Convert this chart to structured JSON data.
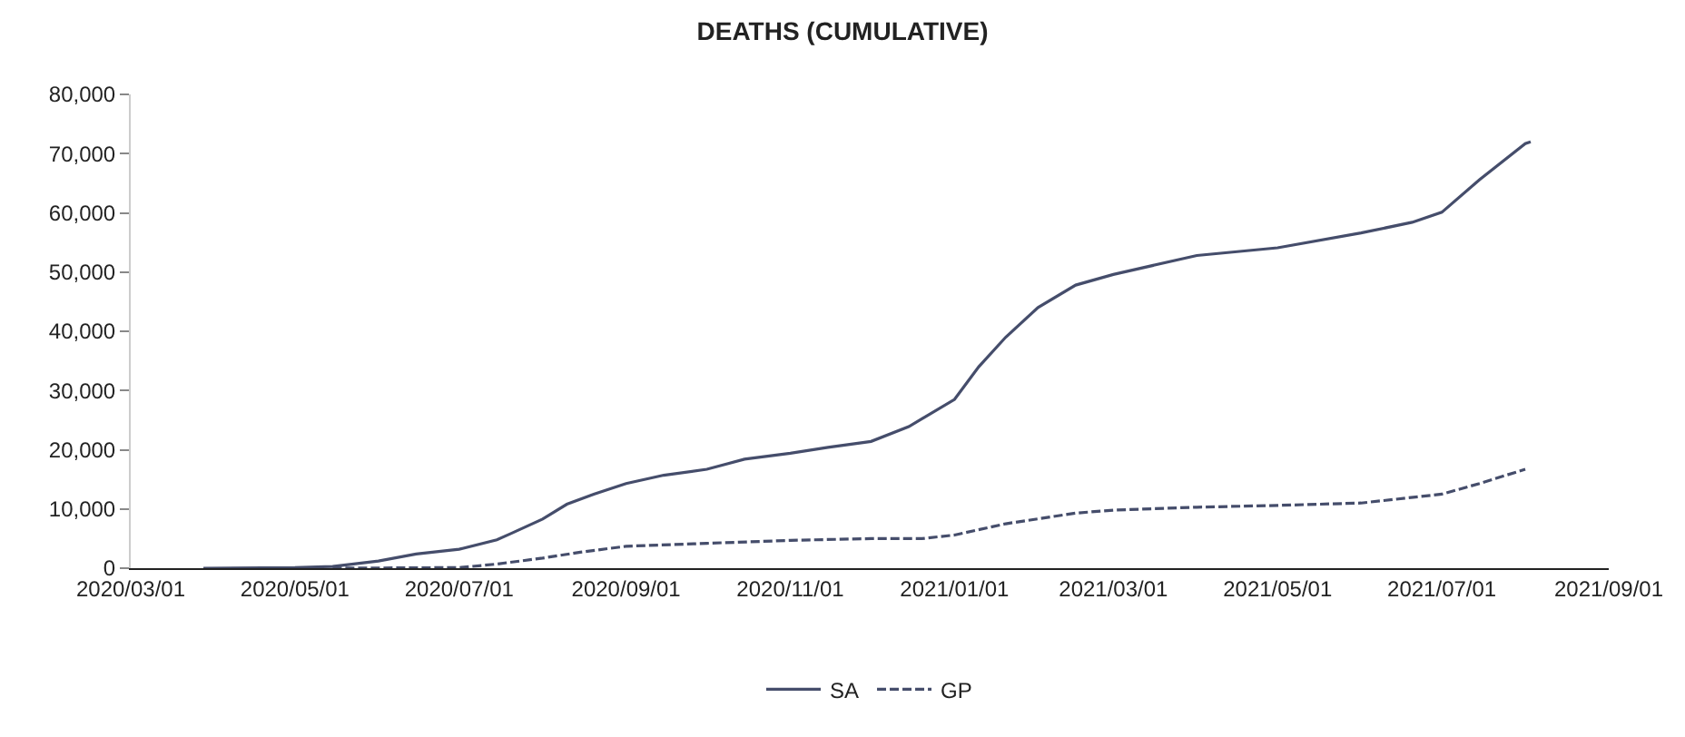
{
  "chart_data": {
    "type": "line",
    "title": "DEATHS (CUMULATIVE)",
    "x": [
      "2020-03-28",
      "2020-05-01",
      "2020-05-15",
      "2020-06-01",
      "2020-06-15",
      "2020-07-01",
      "2020-07-15",
      "2020-07-20",
      "2020-08-01",
      "2020-08-10",
      "2020-08-20",
      "2020-09-01",
      "2020-09-15",
      "2020-10-01",
      "2020-10-15",
      "2020-11-01",
      "2020-11-15",
      "2020-12-01",
      "2020-12-15",
      "2021-01-01",
      "2021-01-10",
      "2021-01-20",
      "2021-02-01",
      "2021-02-15",
      "2021-03-01",
      "2021-04-01",
      "2021-05-01",
      "2021-06-01",
      "2021-06-20",
      "2021-07-01",
      "2021-07-15",
      "2021-08-01",
      "2021-08-03"
    ],
    "series": [
      {
        "name": "SA",
        "color": "#454d6b",
        "line_style": "solid",
        "values": [
          0,
          100,
          300,
          1200,
          2400,
          3200,
          4800,
          5800,
          8300,
          10800,
          12500,
          14300,
          15700,
          16700,
          18400,
          19400,
          20400,
          21400,
          23900,
          28500,
          34000,
          39000,
          44000,
          47800,
          49600,
          52800,
          54100,
          56600,
          58400,
          60100,
          65600,
          71700,
          72000
        ]
      },
      {
        "name": "GP",
        "color": "#454d6b",
        "line_style": "dashed",
        "x": [
          "2020-05-15",
          "2020-07-01",
          "2020-07-15",
          "2020-08-01",
          "2020-08-15",
          "2020-09-01",
          "2020-10-01",
          "2020-11-01",
          "2020-12-01",
          "2020-12-20",
          "2021-01-01",
          "2021-01-20",
          "2021-02-15",
          "2021-03-01",
          "2021-04-01",
          "2021-05-01",
          "2021-06-01",
          "2021-07-01",
          "2021-07-15",
          "2021-08-01"
        ],
        "values": [
          0,
          100,
          700,
          1700,
          2700,
          3700,
          4200,
          4700,
          5000,
          5000,
          5600,
          7500,
          9300,
          9800,
          10300,
          10600,
          11000,
          12500,
          14300,
          16700
        ]
      }
    ],
    "xlim": [
      "2020-03-01",
      "2021-09-01"
    ],
    "xticks": [
      {
        "value": "2020-03-01",
        "label": "2020/03/01"
      },
      {
        "value": "2020-05-01",
        "label": "2020/05/01"
      },
      {
        "value": "2020-07-01",
        "label": "2020/07/01"
      },
      {
        "value": "2020-09-01",
        "label": "2020/09/01"
      },
      {
        "value": "2020-11-01",
        "label": "2020/11/01"
      },
      {
        "value": "2021-01-01",
        "label": "2021/01/01"
      },
      {
        "value": "2021-03-01",
        "label": "2021/03/01"
      },
      {
        "value": "2021-05-01",
        "label": "2021/05/01"
      },
      {
        "value": "2021-07-01",
        "label": "2021/07/01"
      },
      {
        "value": "2021-09-01",
        "label": "2021/09/01"
      }
    ],
    "ylim": [
      0,
      80000
    ],
    "yticks": [
      {
        "value": 0,
        "label": "0"
      },
      {
        "value": 10000,
        "label": "10,000"
      },
      {
        "value": 20000,
        "label": "20,000"
      },
      {
        "value": 30000,
        "label": "30,000"
      },
      {
        "value": 40000,
        "label": "40,000"
      },
      {
        "value": 50000,
        "label": "50,000"
      },
      {
        "value": 60000,
        "label": "60,000"
      },
      {
        "value": 70000,
        "label": "70,000"
      },
      {
        "value": 80000,
        "label": "80,000"
      }
    ],
    "legend": "bottom",
    "marker": "none"
  }
}
